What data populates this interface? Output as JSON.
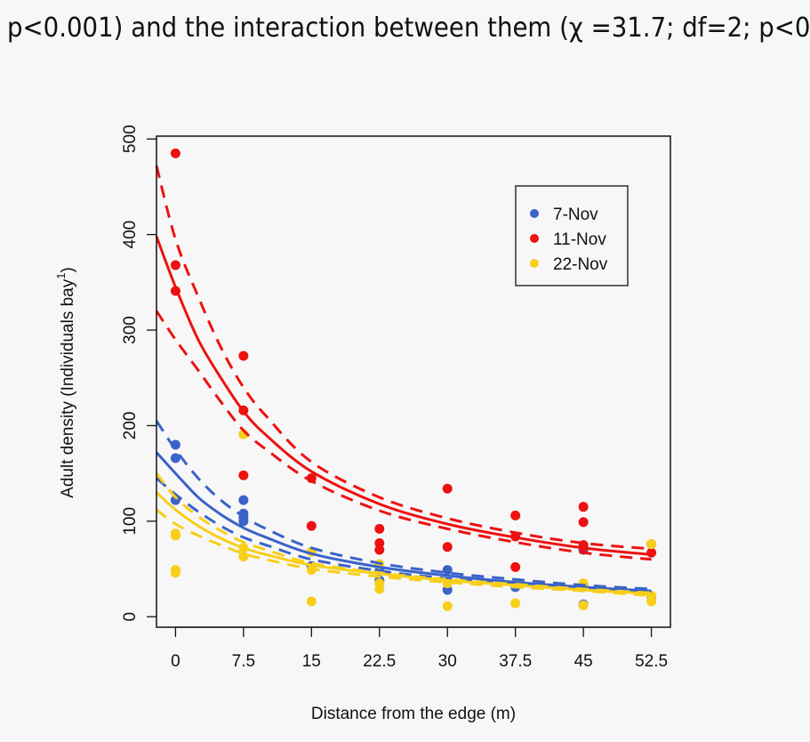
{
  "caption": "p<0.001) and the interaction between them (χ =31.7; df=2; p<0",
  "chart_data": {
    "type": "scatter",
    "title": "",
    "xlabel": "Distance from the edge (m)",
    "ylabel": "Adult density (Individuals bay",
    "ylabel_sup": "1",
    "xlim": [
      -2.1,
      54.6
    ],
    "ylim": [
      -11,
      503
    ],
    "xticks": [
      0,
      7.5,
      15,
      22.5,
      30,
      37.5,
      45,
      52.5
    ],
    "xtick_labels": [
      "0",
      "7.5",
      "15",
      "22.5",
      "30",
      "37.5",
      "45",
      "52.5"
    ],
    "yticks": [
      0,
      100,
      200,
      300,
      400,
      500
    ],
    "ytick_labels": [
      "0",
      "100",
      "200",
      "300",
      "400",
      "500"
    ],
    "grid": false,
    "legend_position": "top-right",
    "fit_x": [
      -2.1,
      0,
      2.5,
      5,
      7.5,
      10,
      15,
      22.5,
      30,
      37.5,
      45,
      52.5
    ],
    "series": [
      {
        "name": "7-Nov",
        "color": "#3a62c9",
        "points": [
          [
            0,
            180
          ],
          [
            0,
            166
          ],
          [
            0,
            122
          ],
          [
            7.5,
            122
          ],
          [
            7.5,
            108
          ],
          [
            7.5,
            104
          ],
          [
            7.5,
            100
          ],
          [
            15,
            68
          ],
          [
            15,
            53
          ],
          [
            22.5,
            48
          ],
          [
            22.5,
            38
          ],
          [
            30,
            49
          ],
          [
            30,
            28
          ],
          [
            37.5,
            31
          ],
          [
            45,
            70
          ],
          [
            45,
            34
          ],
          [
            45,
            13
          ],
          [
            52.5,
            21
          ]
        ],
        "fit": [
          172,
          150,
          125,
          107,
          93,
          83,
          66,
          52,
          43,
          36,
          31,
          27
        ],
        "fit_upper": [
          205,
          175,
          145,
          122,
          105,
          92,
          72,
          56,
          46,
          39,
          33,
          29
        ],
        "fit_lower": [
          145,
          128,
          110,
          95,
          83,
          75,
          60,
          48,
          40,
          34,
          29,
          25
        ]
      },
      {
        "name": "11-Nov",
        "color": "#ee1111",
        "points": [
          [
            0,
            485
          ],
          [
            0,
            368
          ],
          [
            0,
            341
          ],
          [
            7.5,
            273
          ],
          [
            7.5,
            216
          ],
          [
            7.5,
            148
          ],
          [
            15,
            145
          ],
          [
            15,
            95
          ],
          [
            22.5,
            92
          ],
          [
            22.5,
            77
          ],
          [
            22.5,
            70
          ],
          [
            30,
            134
          ],
          [
            30,
            73
          ],
          [
            37.5,
            106
          ],
          [
            37.5,
            84
          ],
          [
            37.5,
            52
          ],
          [
            45,
            115
          ],
          [
            45,
            99
          ],
          [
            45,
            75
          ],
          [
            45,
            73
          ],
          [
            52.5,
            76
          ],
          [
            52.5,
            67
          ]
        ],
        "fit": [
          398,
          345,
          290,
          250,
          215,
          190,
          152,
          118,
          97,
          83,
          72,
          65
        ],
        "fit_upper": [
          472,
          395,
          335,
          282,
          240,
          210,
          162,
          125,
          103,
          88,
          77,
          71
        ],
        "fit_lower": [
          320,
          290,
          258,
          225,
          195,
          175,
          142,
          111,
          92,
          78,
          67,
          60
        ]
      },
      {
        "name": "22-Nov",
        "color": "#f7cf1a",
        "points": [
          [
            0,
            87
          ],
          [
            0,
            85
          ],
          [
            0,
            49
          ],
          [
            0,
            46
          ],
          [
            7.5,
            191
          ],
          [
            7.5,
            72
          ],
          [
            7.5,
            63
          ],
          [
            15,
            68
          ],
          [
            15,
            49
          ],
          [
            15,
            16
          ],
          [
            22.5,
            55
          ],
          [
            22.5,
            35
          ],
          [
            22.5,
            29
          ],
          [
            30,
            35
          ],
          [
            30,
            11
          ],
          [
            37.5,
            35
          ],
          [
            37.5,
            14
          ],
          [
            45,
            35
          ],
          [
            45,
            12
          ],
          [
            52.5,
            76
          ],
          [
            52.5,
            22
          ],
          [
            52.5,
            16
          ]
        ],
        "fit": [
          130,
          112,
          95,
          82,
          72,
          65,
          54,
          45,
          38,
          33,
          28,
          24
        ],
        "fit_upper": [
          150,
          125,
          105,
          90,
          78,
          70,
          56,
          46,
          39,
          34,
          29,
          25
        ],
        "fit_lower": [
          112,
          97,
          85,
          75,
          66,
          60,
          50,
          42,
          36,
          31,
          27,
          22
        ]
      }
    ]
  }
}
